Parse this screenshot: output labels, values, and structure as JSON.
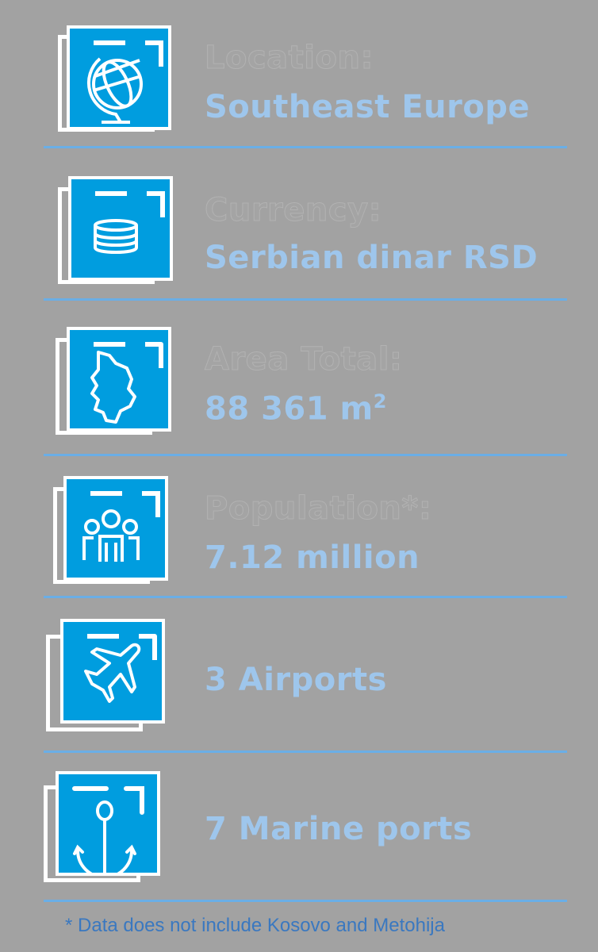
{
  "colors": {
    "background": "#a2a2a2",
    "tile": "#009ddf",
    "value_text": "#9ec6ec",
    "divider": "#6aaee6",
    "footnote": "#3a78c0"
  },
  "items": [
    {
      "icon": "globe-icon",
      "label": "Location:",
      "value": "Southeast Europe"
    },
    {
      "icon": "coins-icon",
      "label": "Currency:",
      "value": "Serbian dinar RSD"
    },
    {
      "icon": "serbia-map-icon",
      "label": "Area Total:",
      "value": "88 361 m",
      "value_sup": "2"
    },
    {
      "icon": "people-icon",
      "label": "Population*:",
      "value": "7.12 million"
    },
    {
      "icon": "airplane-icon",
      "label": "",
      "value": "3 Airports"
    },
    {
      "icon": "anchor-icon",
      "label": "",
      "value": "7 Marine ports"
    }
  ],
  "footnote": "* Data does not include Kosovo and Metohija"
}
